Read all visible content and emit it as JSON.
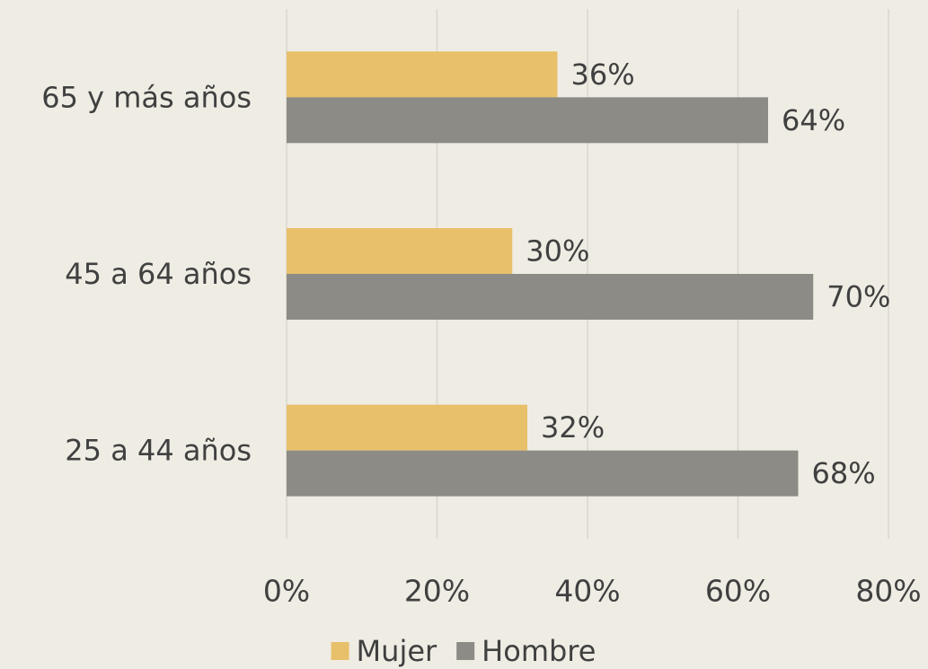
{
  "chart_data": {
    "type": "hbar",
    "categories": [
      "65 y más años",
      "45 a 64 años",
      "25 a 44 años"
    ],
    "series": [
      {
        "name": "Mujer",
        "color": "#e8c06a",
        "values": [
          36,
          30,
          32
        ],
        "value_labels": [
          "36%",
          "30%",
          "32%"
        ]
      },
      {
        "name": "Hombre",
        "color": "#8c8b85",
        "values": [
          64,
          70,
          68
        ],
        "value_labels": [
          "64%",
          "70%",
          "68%"
        ]
      }
    ],
    "xlim": [
      0,
      80
    ],
    "xticks": [
      {
        "value": 0,
        "label": "0%"
      },
      {
        "value": 20,
        "label": "20%"
      },
      {
        "value": 40,
        "label": "40%"
      },
      {
        "value": 60,
        "label": "60%"
      },
      {
        "value": 80,
        "label": "80%"
      }
    ],
    "grid": true,
    "legend": "bottom"
  }
}
